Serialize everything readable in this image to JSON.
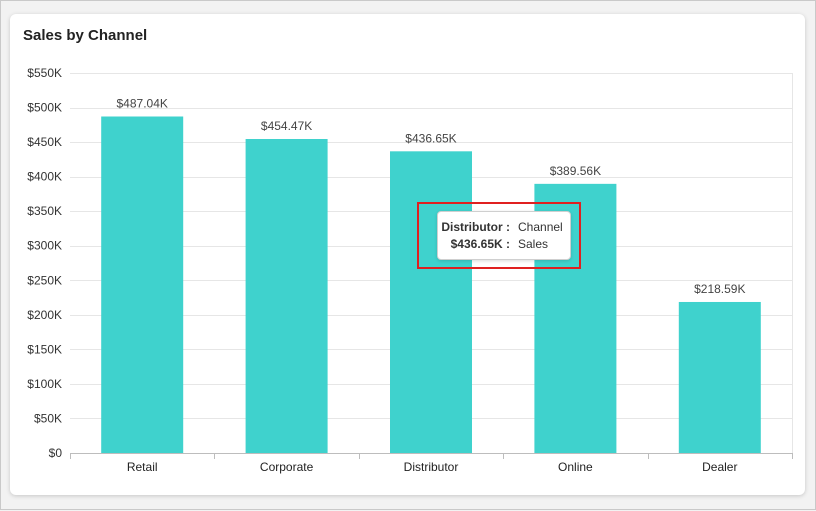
{
  "title": "Sales by Channel",
  "colors": {
    "bar": "#3fd2cd",
    "grid": "#e6e6e6",
    "highlight": "#e02020"
  },
  "tooltip": {
    "category": "Distributor :",
    "category_name": "Channel",
    "value": "$436.65K :",
    "value_name": "Sales"
  },
  "chart_data": {
    "type": "bar",
    "title": "Sales by Channel",
    "categories": [
      "Retail",
      "Corporate",
      "Distributor",
      "Online",
      "Dealer"
    ],
    "values": [
      487.04,
      454.47,
      436.65,
      389.56,
      218.59
    ],
    "data_labels": [
      "$487.04K",
      "$454.47K",
      "$436.65K",
      "$389.56K",
      "$218.59K"
    ],
    "value_unit": "thousands of USD",
    "xlabel": "",
    "ylabel": "",
    "ylim": [
      0,
      550
    ],
    "yticks": [
      0,
      50,
      100,
      150,
      200,
      250,
      300,
      350,
      400,
      450,
      500,
      550
    ],
    "ytick_labels": [
      "$0",
      "$50K",
      "$100K",
      "$150K",
      "$200K",
      "$250K",
      "$300K",
      "$350K",
      "$400K",
      "$450K",
      "$500K",
      "$550K"
    ],
    "grid": true,
    "legend": "none"
  }
}
